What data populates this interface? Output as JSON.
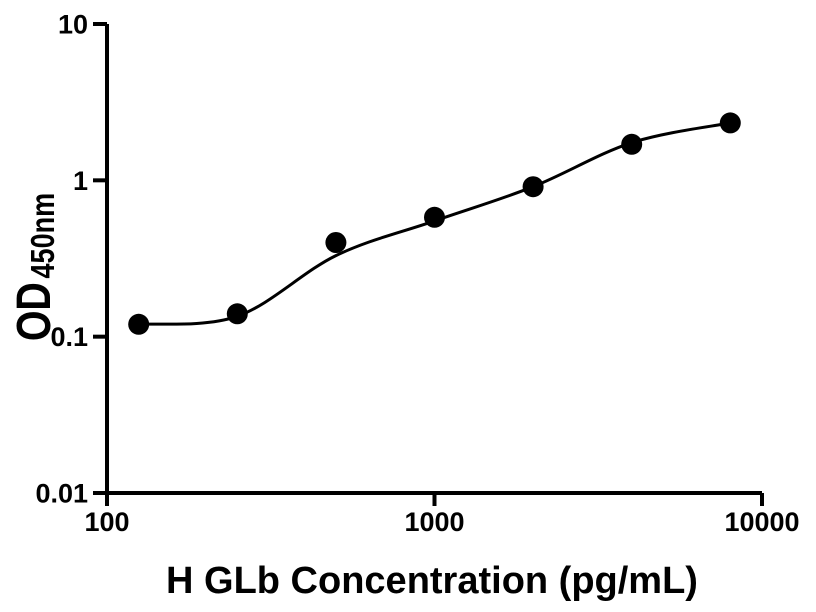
{
  "figure": {
    "background": "#ffffff",
    "foreground": "#000000"
  },
  "chart_data": {
    "type": "scatter",
    "title": "",
    "xlabel": "H GLb Concentration (pg/mL)",
    "ylabel": "OD",
    "ylabel_subscript": "450nm",
    "x_scale": "log",
    "y_scale": "log",
    "xlim": [
      100,
      10000
    ],
    "ylim": [
      0.01,
      10
    ],
    "grid": false,
    "legend_position": "none",
    "x_ticks": [
      {
        "value": 100,
        "label": "100"
      },
      {
        "value": 1000,
        "label": "1000"
      },
      {
        "value": 10000,
        "label": "10000"
      }
    ],
    "y_ticks": [
      {
        "value": 0.01,
        "label": "0.01"
      },
      {
        "value": 0.1,
        "label": "0.1"
      },
      {
        "value": 1,
        "label": "1"
      },
      {
        "value": 10,
        "label": "10"
      }
    ],
    "series": [
      {
        "name": "standard-curve-points",
        "marker": "filled-circle",
        "color": "#000000",
        "points": [
          {
            "x": 125,
            "y": 0.12
          },
          {
            "x": 250,
            "y": 0.14
          },
          {
            "x": 500,
            "y": 0.4
          },
          {
            "x": 1000,
            "y": 0.58
          },
          {
            "x": 2000,
            "y": 0.91
          },
          {
            "x": 4000,
            "y": 1.7
          },
          {
            "x": 8000,
            "y": 2.33
          }
        ]
      }
    ],
    "fit_curve": {
      "name": "4pl-fit-curve",
      "color": "#000000",
      "points": [
        {
          "x": 125,
          "y": 0.12
        },
        {
          "x": 250,
          "y": 0.135
        },
        {
          "x": 500,
          "y": 0.33
        },
        {
          "x": 1000,
          "y": 0.55
        },
        {
          "x": 2000,
          "y": 0.91
        },
        {
          "x": 4000,
          "y": 1.74
        },
        {
          "x": 8000,
          "y": 2.33
        }
      ]
    }
  }
}
